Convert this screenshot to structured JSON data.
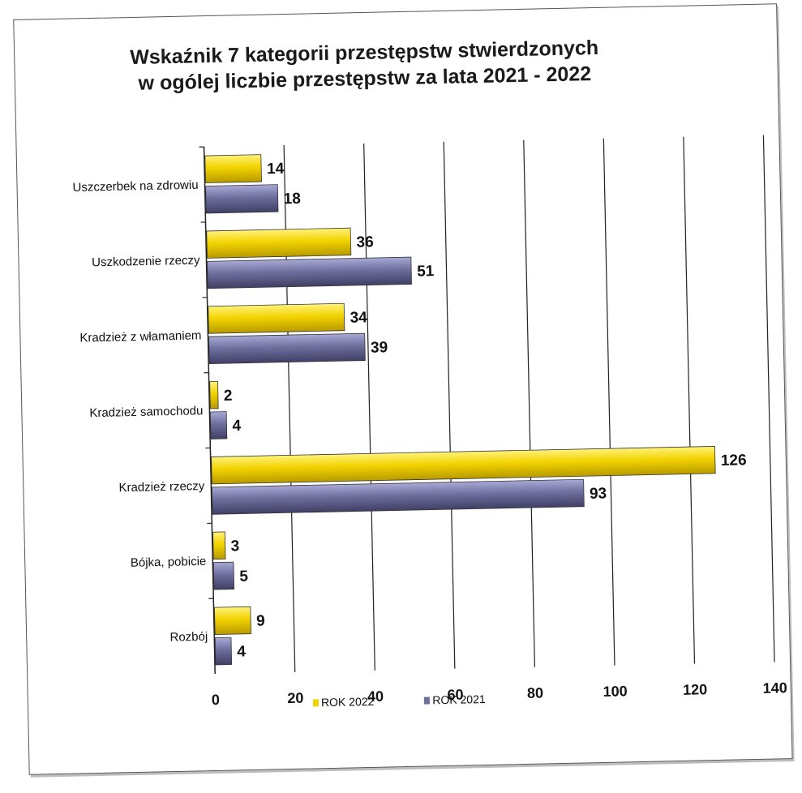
{
  "chart_data": {
    "type": "bar",
    "orientation": "horizontal",
    "title": [
      "Wskaźnik 7 kategorii przestępstw stwierdzonych",
      "w ogólej liczbie przestępstw za lata 2021 - 2022"
    ],
    "categories": [
      "Uszczerbek na zdrowiu",
      "Uszkodzenie rzeczy",
      "Kradzież z włamaniem",
      "Kradzież samochodu",
      "Kradzież rzeczy",
      "Bójka, pobicie",
      "Rozbój"
    ],
    "series": [
      {
        "name": "ROK 2022",
        "color": "#f2d300",
        "values": [
          14,
          36,
          34,
          2,
          126,
          3,
          9
        ]
      },
      {
        "name": "ROK 2021",
        "color": "#6f6f9e",
        "values": [
          18,
          51,
          39,
          4,
          93,
          5,
          4
        ]
      }
    ],
    "xlim": [
      0,
      140
    ],
    "xticks": [
      "0",
      "20",
      "40",
      "60",
      "80",
      "100",
      "120",
      "140"
    ],
    "grid": true,
    "legend": "bottom"
  }
}
